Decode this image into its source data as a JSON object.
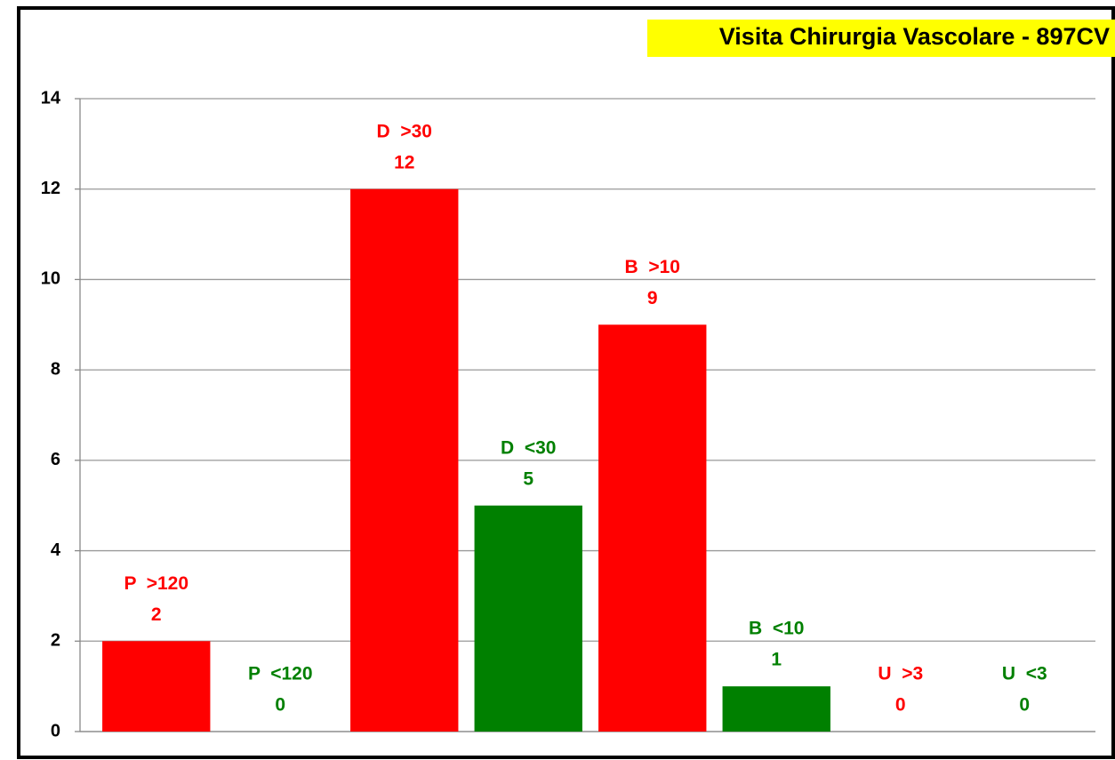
{
  "chart_data": {
    "type": "bar",
    "title": "Visita Chirurgia Vascolare - 897CV",
    "categories": [
      "P  >120",
      "P  <120",
      "D  >30",
      "D  <30",
      "B  >10",
      "B  <10",
      "U  >3",
      "U  <3"
    ],
    "values": [
      2,
      0,
      12,
      5,
      9,
      1,
      0,
      0
    ],
    "colors": [
      "#ff0000",
      "#008000",
      "#ff0000",
      "#008000",
      "#ff0000",
      "#008000",
      "#ff0000",
      "#008000"
    ],
    "ylim": [
      0,
      14
    ],
    "yticks": [
      0,
      2,
      4,
      6,
      8,
      10,
      12,
      14
    ],
    "grid": true
  }
}
